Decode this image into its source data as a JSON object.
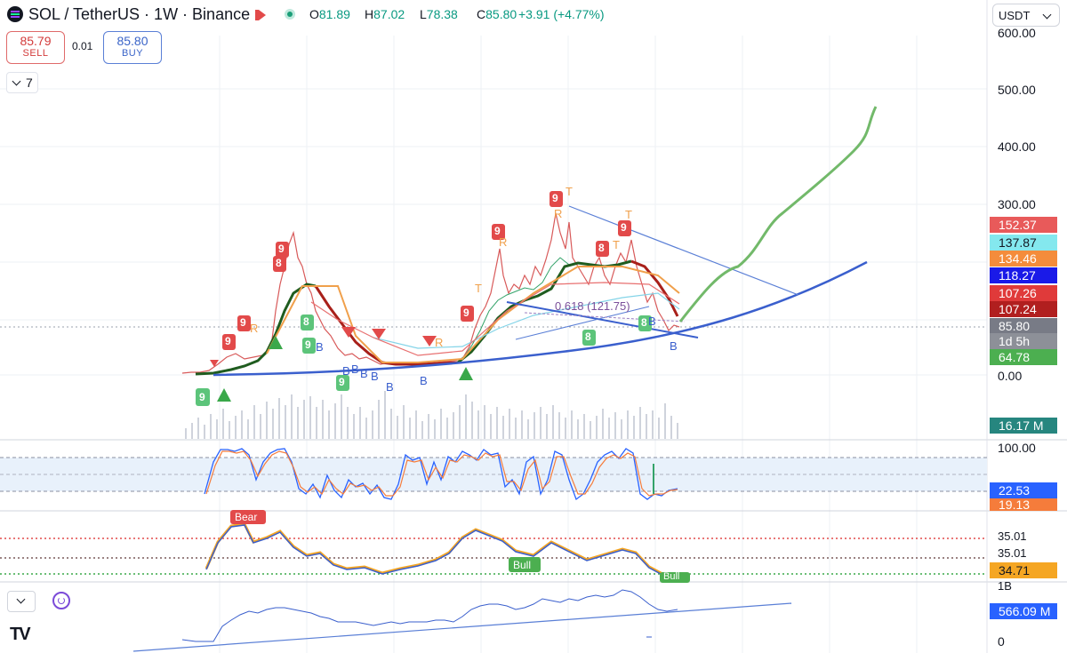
{
  "header": {
    "title": "SOL / TetherUS · 1W · Binance",
    "ohlc": {
      "open_label": "O",
      "open": "81.89",
      "high_label": "H",
      "high": "87.02",
      "low_label": "L",
      "low": "78.38",
      "close_label": "C",
      "close": "85.80",
      "change": "+3.91 (+4.77%)"
    }
  },
  "trade": {
    "sell_price": "85.79",
    "sell_label": "SELL",
    "spread": "0.01",
    "buy_price": "85.80",
    "buy_label": "BUY"
  },
  "indicators_collapsed_count": "7",
  "currency_selector": "USDT",
  "price_axis": [
    "600.00",
    "500.00",
    "400.00",
    "300.00",
    "0.00"
  ],
  "price_tags": [
    {
      "value": "152.37",
      "color": "#e85a5a",
      "text_color": "#ffffff"
    },
    {
      "value": "137.87",
      "color": "#84e8ee",
      "text_color": "#131722"
    },
    {
      "value": "134.46",
      "color": "#f48c3b",
      "text_color": "#ffffff"
    },
    {
      "value": "118.27",
      "color": "#1a1ae8",
      "text_color": "#ffffff"
    },
    {
      "value": "107.26",
      "color": "#e03a3a",
      "text_color": "#ffffff"
    },
    {
      "value": "107.24",
      "color": "#b11f1f",
      "text_color": "#ffffff"
    },
    {
      "value": "85.80",
      "color": "#787b86",
      "text_color": "#ffffff"
    },
    {
      "value": "1d 5h",
      "color": "#8d9098",
      "text_color": "#ffffff"
    },
    {
      "value": "64.78",
      "color": "#4caf50",
      "text_color": "#ffffff"
    }
  ],
  "volume_tag": {
    "value": "16.17 M",
    "color": "#26867f"
  },
  "stoch_rsi": {
    "axis_top": "100.00",
    "tag_k": "22.53",
    "tag_k_color": "#2962ff",
    "tag_d": "19.13",
    "tag_d_color": "#f57c3b"
  },
  "osc_pane": {
    "axis": [
      "35.01",
      "35.01"
    ],
    "tag": "34.71",
    "tag_color": "#f5a623",
    "bear_label": "Bear",
    "bull_label_1": "Bull",
    "bull_label_2": "Bull"
  },
  "obv_pane": {
    "axis_top": "1B",
    "axis_bottom": "0",
    "tag": "566.09 M",
    "tag_color": "#2962ff"
  },
  "markers": {
    "td_9": "9",
    "td_8": "8",
    "trend_t": "T",
    "trend_r": "R",
    "buy_b": "B",
    "fib_label": "0.618 (121.75)"
  },
  "colors": {
    "up": "#089981",
    "down": "#f23645",
    "ema_dark": "#1f5c1f",
    "ema_red": "#a8201a",
    "curve_blue": "#3a5fcd",
    "projection_green": "#72b96a"
  },
  "logo": "TV"
}
